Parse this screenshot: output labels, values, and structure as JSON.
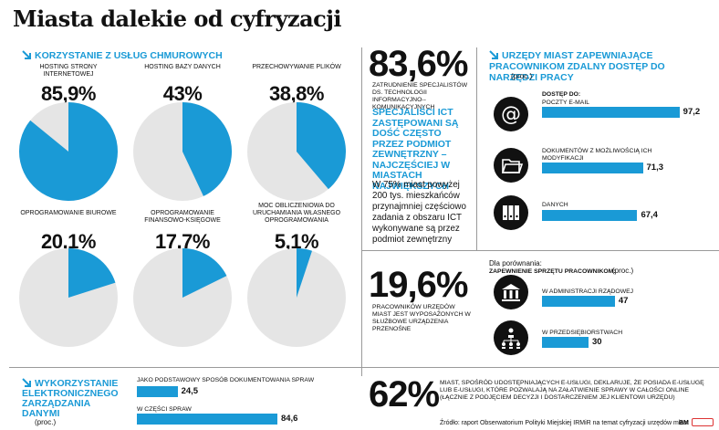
{
  "title": "Miasta dalekie od cyfryzacji",
  "chart_data": [
    {
      "type": "pie",
      "title": "Korzystanie z usług chmurowych",
      "items": [
        {
          "label": "Hosting strony internetowej",
          "value": 85.9,
          "value_label": "85,9%"
        },
        {
          "label": "Hosting bazy danych",
          "value": 43,
          "value_label": "43%"
        },
        {
          "label": "Przechowywanie plików",
          "value": 38.8,
          "value_label": "38,8%"
        },
        {
          "label": "Oprogramowanie biurowe",
          "value": 20.1,
          "value_label": "20,1%"
        },
        {
          "label": "Oprogramowanie finansowo-księgowe",
          "value": 17.7,
          "value_label": "17,7%"
        },
        {
          "label": "Moc obliczeniowa do uruchamiania własnego oprogramowania",
          "value": 5.1,
          "value_label": "5,1%"
        }
      ]
    },
    {
      "type": "bar",
      "title": "Urzędy miast zapewniające pracownikom zdalny dostęp do narzędzi pracy",
      "unit": "(proc.)",
      "group_label": "DOSTĘP DO:",
      "categories": [
        "POCZTY E-MAIL",
        "DOKUMENTÓW Z MOŻLIWOŚCIĄ ICH MODYFIKACJI",
        "DANYCH"
      ],
      "values": [
        97.2,
        71.3,
        67.4
      ],
      "value_labels": [
        "97,2",
        "71,3",
        "67,4"
      ]
    },
    {
      "type": "bar",
      "title": "Zapewnienie sprzętu pracownikom:",
      "intro": "Dla porównania:",
      "unit": "(proc.)",
      "categories": [
        "W ADMINISTRACJI RZĄDOWEJ",
        "W PRZEDSIĘBIORSTWACH"
      ],
      "values": [
        47,
        30
      ],
      "value_labels": [
        "47",
        "30"
      ]
    },
    {
      "type": "bar",
      "title": "Wykorzystanie elektronicznego zarządzania danymi",
      "unit": "(proc.)",
      "categories": [
        "JAKO PODSTAWOWY SPOSÓB DOKUMENTOWANIA SPRAW",
        "W CZĘŚCI SPRAW"
      ],
      "values": [
        24.5,
        84.6
      ],
      "value_labels": [
        "24,5",
        "84,6"
      ]
    }
  ],
  "ict": {
    "value": "83,6%",
    "caption": "ZATRUDNIENIE SPECJALISTÓW DS. TECHNOLOGII INFORMACYJNO--KOMUNIKACYJNYCH",
    "highlight": "SPECJALIŚCI ICT ZASTĘPOWANI SĄ DOŚĆ CZĘSTO PRZEZ PODMIOT ZEWNĘTRZNY – NAJCZĘŚCIEJ W MIASTACH NAJWIĘKSZYCH",
    "note": "W 75% miast powyżej 200 tys. mieszkańców przynajmniej częściowo zadania z obszaru ICT wykonywane są przez podmiot zewnętrzny"
  },
  "devices": {
    "value": "19,6%",
    "caption": "PRACOWNIKÓW URZĘDÓW MIAST JEST WYPOSAŻONYCH W SŁUŻBOWE URZĄDZENIA PRZENOŚNE"
  },
  "eservice": {
    "value": "62%",
    "caption": "MIAST, SPOŚRÓD UDOSTĘPNIAJĄCYCH E-USŁUGI, DEKLARUJE, ŻE POSIADA E-USŁUGĘ LUB E-USŁUGI, KTÓRE POZWALAJĄ NA ZAŁATWIENIE SPRAWY W CAŁOŚCI ONLINE (ŁĄCZNIE Z PODJĘCIEM DECYZJI I DOSTARCZENIEM JEJ KLIENTOWI URZĘDU)"
  },
  "source": "Źródło: raport Obserwatorium Polityki Miejskiej IRMiR na temat cyfryzacji urzędów miast",
  "credit": "BM",
  "colors": {
    "accent": "#1a9ad6",
    "pie_bg": "#e5e5e5",
    "icon": "#111111"
  }
}
